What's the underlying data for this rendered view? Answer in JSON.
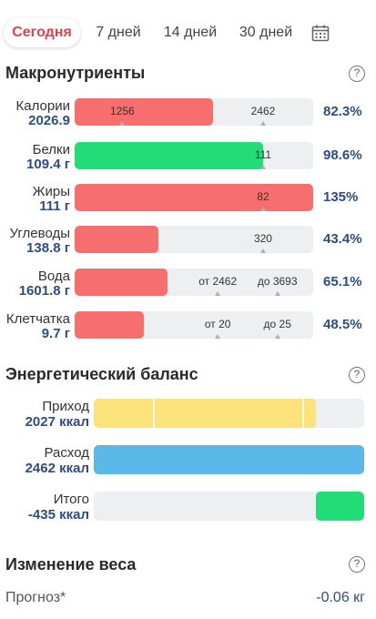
{
  "tabs": [
    {
      "label": "Сегодня",
      "active": true
    },
    {
      "label": "7 дней"
    },
    {
      "label": "14 дней"
    },
    {
      "label": "30 дней"
    }
  ],
  "calendar_icon": "calendar-icon",
  "macros": {
    "title": "Макронутриенты",
    "help": "?",
    "rows": [
      {
        "name": "Калории",
        "value": "2026.9",
        "fill_fraction": 0.58,
        "color": "#f76e6e",
        "marks": [
          {
            "text": "1256",
            "pos": 0.2
          },
          {
            "text": "2462",
            "pos": 0.79
          }
        ],
        "percent": "82.3%"
      },
      {
        "name": "Белки",
        "value": "109.4 г",
        "fill_fraction": 0.79,
        "color": "#22dd77",
        "marks": [
          {
            "text": "111",
            "pos": 0.79
          }
        ],
        "percent": "98.6%"
      },
      {
        "name": "Жиры",
        "value": "111 г",
        "fill_fraction": 1.0,
        "color": "#f76e6e",
        "marks": [
          {
            "text": "82",
            "pos": 0.79
          }
        ],
        "percent": "135%"
      },
      {
        "name": "Углеводы",
        "value": "138.8 г",
        "fill_fraction": 0.35,
        "color": "#f76e6e",
        "marks": [
          {
            "text": "320",
            "pos": 0.79
          }
        ],
        "percent": "43.4%"
      },
      {
        "name": "Вода",
        "value": "1601.8 г",
        "fill_fraction": 0.39,
        "color": "#f76e6e",
        "marks": [
          {
            "text": "от 2462",
            "pos": 0.6
          },
          {
            "text": "до 3693",
            "pos": 0.85
          }
        ],
        "percent": "65.1%"
      },
      {
        "name": "Клетчатка",
        "value": "9.7 г",
        "fill_fraction": 0.29,
        "color": "#f76e6e",
        "marks": [
          {
            "text": "от 20",
            "pos": 0.6
          },
          {
            "text": "до 25",
            "pos": 0.85
          }
        ],
        "percent": "48.5%"
      }
    ]
  },
  "energy": {
    "title": "Энергетический баланс",
    "help": "?",
    "rows": [
      {
        "name": "Приход",
        "value": "2027 ккал",
        "fill_start": 0.0,
        "fill_fraction": 0.823,
        "color": "#fbe27a",
        "separators": [
          0.22,
          0.77
        ]
      },
      {
        "name": "Расход",
        "value": "2462 ккал",
        "fill_start": 0.0,
        "fill_fraction": 1.0,
        "color": "#5cb8e8",
        "separators": []
      },
      {
        "name": "Итого",
        "value": "-435 ккал",
        "fill_start": 0.823,
        "fill_fraction": 0.177,
        "color": "#22dd77",
        "separators": []
      }
    ]
  },
  "weight": {
    "title": "Изменение веса",
    "help": "?",
    "forecast_label": "Прогноз*",
    "forecast_value": "-0.06 кг"
  }
}
